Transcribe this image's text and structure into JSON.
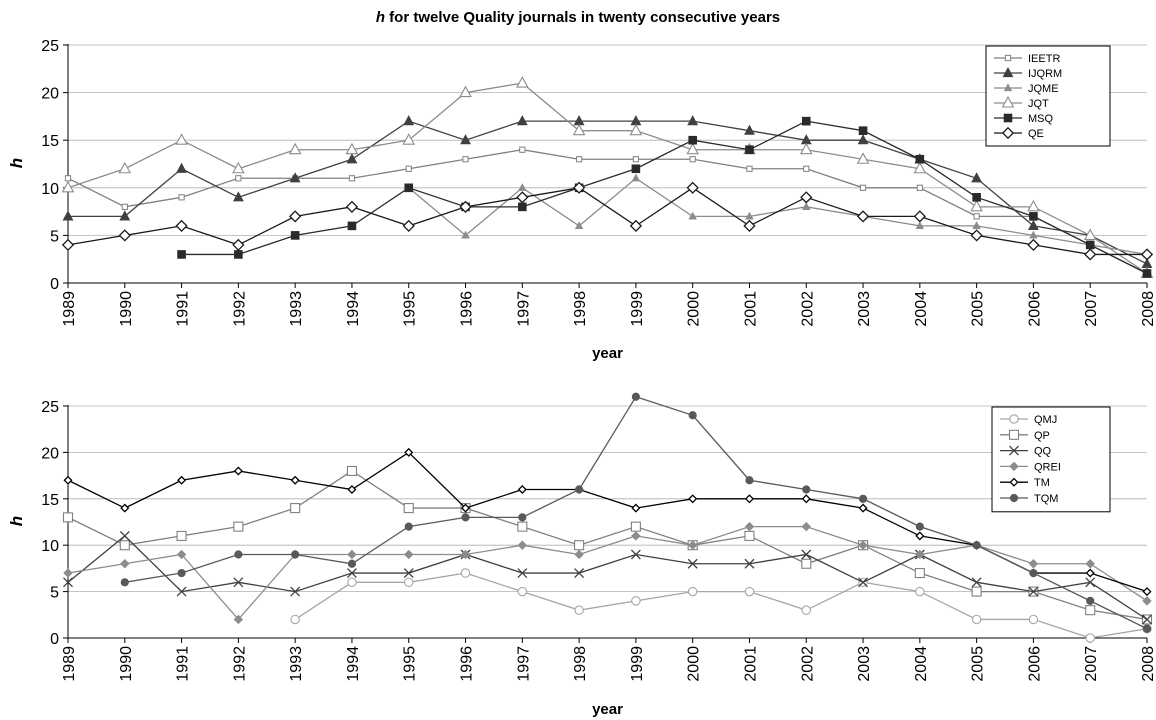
{
  "figure": {
    "title_pre": "h",
    "title_post": " for twelve Quality journals in twenty consecutive years"
  },
  "chart_data": [
    {
      "type": "line",
      "title": "h for twelve Quality journals in twenty consecutive years",
      "xlabel": "year",
      "ylabel": "h",
      "ylim": [
        0,
        25
      ],
      "yticks": [
        0,
        5,
        10,
        15,
        20,
        25
      ],
      "grid": "horizontal",
      "legend_position": "top-right",
      "x": [
        "1989",
        "1990",
        "1991",
        "1992",
        "1993",
        "1994",
        "1995",
        "1996",
        "1997",
        "1998",
        "1999",
        "2000",
        "2001",
        "2002",
        "2003",
        "2004",
        "2005",
        "2006",
        "2007",
        "2008"
      ],
      "series": [
        {
          "name": "IEETR",
          "marker": "small-square",
          "color": "#808080",
          "values": [
            11,
            8,
            9,
            11,
            11,
            11,
            12,
            13,
            14,
            13,
            13,
            13,
            12,
            12,
            10,
            10,
            7,
            7,
            4,
            1
          ]
        },
        {
          "name": "IJQRM",
          "marker": "filled-triangle",
          "color": "#404040",
          "values": [
            7,
            7,
            12,
            9,
            11,
            13,
            17,
            15,
            17,
            17,
            17,
            17,
            16,
            15,
            15,
            13,
            11,
            6,
            5,
            2
          ]
        },
        {
          "name": "JQME",
          "marker": "small-triangle",
          "color": "#8c8c8c",
          "values": [
            null,
            null,
            null,
            null,
            null,
            null,
            10,
            5,
            10,
            6,
            11,
            7,
            7,
            8,
            7,
            6,
            6,
            5,
            4,
            3
          ]
        },
        {
          "name": "JQT",
          "marker": "open-triangle",
          "color": "#8c8c8c",
          "values": [
            10,
            12,
            15,
            12,
            14,
            14,
            15,
            20,
            21,
            16,
            16,
            14,
            14,
            14,
            13,
            12,
            8,
            8,
            5,
            1
          ]
        },
        {
          "name": "MSQ",
          "marker": "filled-square",
          "color": "#2a2a2a",
          "values": [
            null,
            null,
            3,
            3,
            5,
            6,
            10,
            8,
            8,
            10,
            12,
            15,
            14,
            17,
            16,
            13,
            9,
            7,
            4,
            1
          ]
        },
        {
          "name": "QE",
          "marker": "open-diamond",
          "color": "#1a1a1a",
          "values": [
            4,
            5,
            6,
            4,
            7,
            8,
            6,
            8,
            9,
            10,
            6,
            10,
            6,
            9,
            7,
            7,
            5,
            4,
            3,
            3
          ]
        }
      ]
    },
    {
      "type": "line",
      "title": "",
      "xlabel": "year",
      "ylabel": "h",
      "ylim": [
        0,
        25
      ],
      "yticks": [
        0,
        5,
        10,
        15,
        20,
        25
      ],
      "grid": "horizontal",
      "legend_position": "top-right",
      "x": [
        "1989",
        "1990",
        "1991",
        "1992",
        "1993",
        "1994",
        "1995",
        "1996",
        "1997",
        "1998",
        "1999",
        "2000",
        "2001",
        "2002",
        "2003",
        "2004",
        "2005",
        "2006",
        "2007",
        "2008"
      ],
      "series": [
        {
          "name": "QMJ",
          "marker": "open-circle",
          "color": "#a6a6a6",
          "values": [
            null,
            null,
            null,
            null,
            2,
            6,
            6,
            7,
            5,
            3,
            4,
            5,
            5,
            3,
            6,
            5,
            2,
            2,
            0,
            1
          ]
        },
        {
          "name": "QP",
          "marker": "open-square",
          "color": "#808080",
          "values": [
            13,
            10,
            11,
            12,
            14,
            18,
            14,
            14,
            12,
            10,
            12,
            10,
            11,
            8,
            10,
            7,
            5,
            5,
            3,
            2
          ]
        },
        {
          "name": "QQ",
          "marker": "x",
          "color": "#404040",
          "values": [
            6,
            11,
            5,
            6,
            5,
            7,
            7,
            9,
            7,
            7,
            9,
            8,
            8,
            9,
            6,
            9,
            6,
            5,
            6,
            2
          ]
        },
        {
          "name": "QREI",
          "marker": "filled-diamond",
          "color": "#8c8c8c",
          "values": [
            7,
            8,
            9,
            2,
            9,
            9,
            9,
            9,
            10,
            9,
            11,
            10,
            12,
            12,
            10,
            9,
            10,
            8,
            8,
            4
          ]
        },
        {
          "name": "TM",
          "marker": "small-diamond",
          "color": "#000000",
          "values": [
            17,
            14,
            17,
            18,
            17,
            16,
            20,
            14,
            16,
            16,
            14,
            15,
            15,
            15,
            14,
            11,
            10,
            7,
            7,
            5
          ]
        },
        {
          "name": "TQM",
          "marker": "filled-circle",
          "color": "#595959",
          "values": [
            null,
            6,
            7,
            9,
            9,
            8,
            12,
            13,
            13,
            16,
            26,
            24,
            17,
            16,
            15,
            12,
            10,
            7,
            4,
            1
          ]
        }
      ]
    }
  ]
}
